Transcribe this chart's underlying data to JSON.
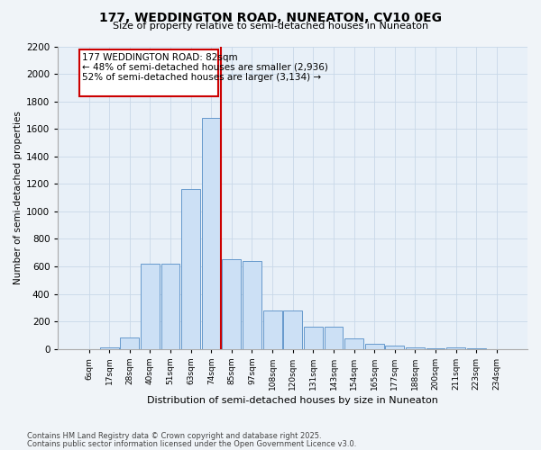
{
  "title": "177, WEDDINGTON ROAD, NUNEATON, CV10 0EG",
  "subtitle": "Size of property relative to semi-detached houses in Nuneaton",
  "xlabel": "Distribution of semi-detached houses by size in Nuneaton",
  "ylabel": "Number of semi-detached properties",
  "categories": [
    "6sqm",
    "17sqm",
    "28sqm",
    "40sqm",
    "51sqm",
    "63sqm",
    "74sqm",
    "85sqm",
    "97sqm",
    "108sqm",
    "120sqm",
    "131sqm",
    "143sqm",
    "154sqm",
    "165sqm",
    "177sqm",
    "188sqm",
    "200sqm",
    "211sqm",
    "223sqm",
    "234sqm"
  ],
  "values": [
    0,
    10,
    80,
    620,
    620,
    1160,
    1680,
    650,
    640,
    280,
    280,
    160,
    160,
    75,
    35,
    25,
    10,
    5,
    10,
    5,
    0
  ],
  "ylim": [
    0,
    2200
  ],
  "yticks": [
    0,
    200,
    400,
    600,
    800,
    1000,
    1200,
    1400,
    1600,
    1800,
    2000,
    2200
  ],
  "bar_color": "#cce0f5",
  "bar_edge_color": "#6699cc",
  "vline_index": 6,
  "annotation_title": "177 WEDDINGTON ROAD: 82sqm",
  "annotation_line1": "← 48% of semi-detached houses are smaller (2,936)",
  "annotation_line2": "52% of semi-detached houses are larger (3,134) →",
  "annotation_box_color": "#ffffff",
  "annotation_box_edge_color": "#cc0000",
  "vline_color": "#cc0000",
  "footer_line1": "Contains HM Land Registry data © Crown copyright and database right 2025.",
  "footer_line2": "Contains public sector information licensed under the Open Government Licence v3.0.",
  "bg_color": "#f0f4f8",
  "plot_bg_color": "#e8f0f8",
  "grid_color": "#c8d8e8"
}
